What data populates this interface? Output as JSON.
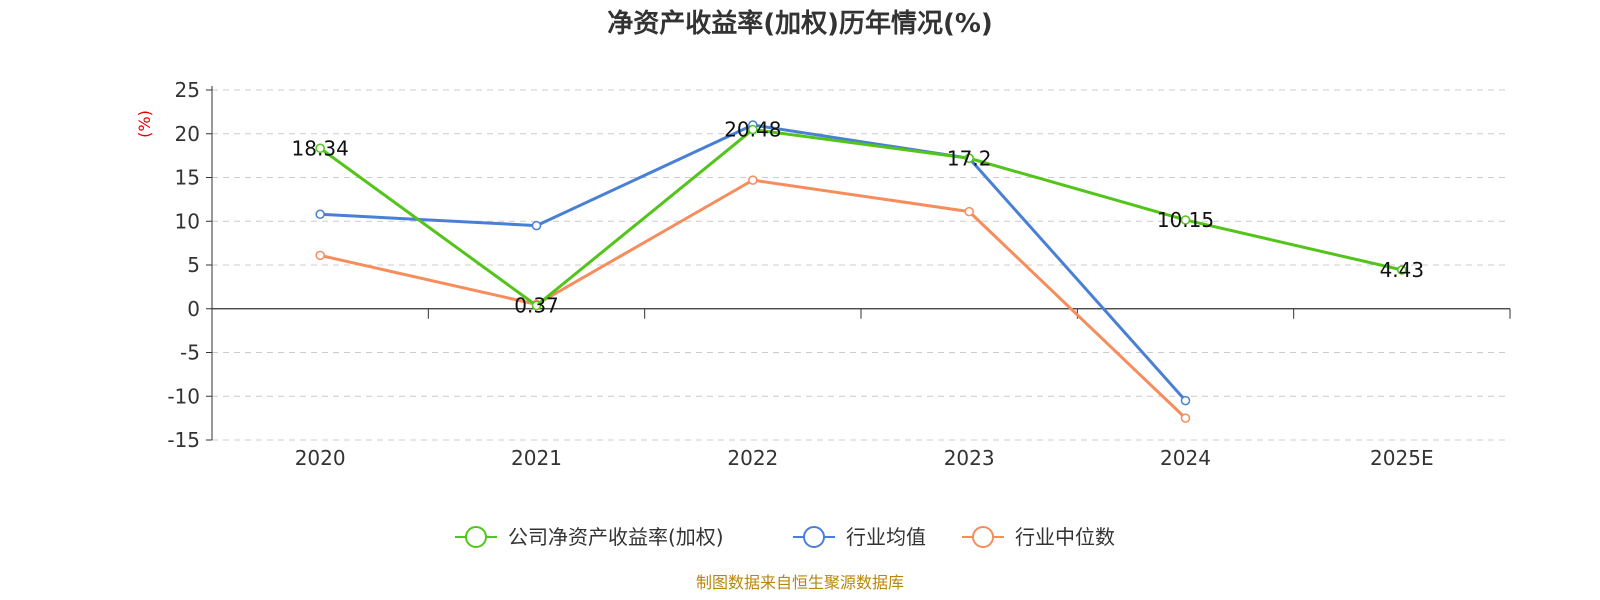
{
  "chart_data": {
    "type": "line",
    "title": "净资产收益率(加权)历年情况(%)",
    "ylabel": "(%)",
    "xlabel": "",
    "categories": [
      "2020",
      "2021",
      "2022",
      "2023",
      "2024",
      "2025E"
    ],
    "ylim": [
      -15,
      25
    ],
    "yticks": [
      25,
      20,
      15,
      10,
      5,
      0,
      -5,
      -10,
      -15
    ],
    "grid": true,
    "legend_position": "bottom-center",
    "series": [
      {
        "name": "公司净资产收益率(加权)",
        "color": "#52c41a",
        "values": [
          18.34,
          0.37,
          20.48,
          17.2,
          10.15,
          4.43
        ],
        "labels": [
          "18.34",
          "0.37",
          "20.48",
          "17.2",
          "10.15",
          "4.43"
        ]
      },
      {
        "name": "行业均值",
        "color": "#4a7fd6",
        "values": [
          10.8,
          9.5,
          21.0,
          17.2,
          -10.5,
          null
        ]
      },
      {
        "name": "行业中位数",
        "color": "#f78c5c",
        "values": [
          6.1,
          0.5,
          14.7,
          11.1,
          -12.5,
          null
        ]
      }
    ],
    "source": "制图数据来自恒生聚源数据库"
  }
}
